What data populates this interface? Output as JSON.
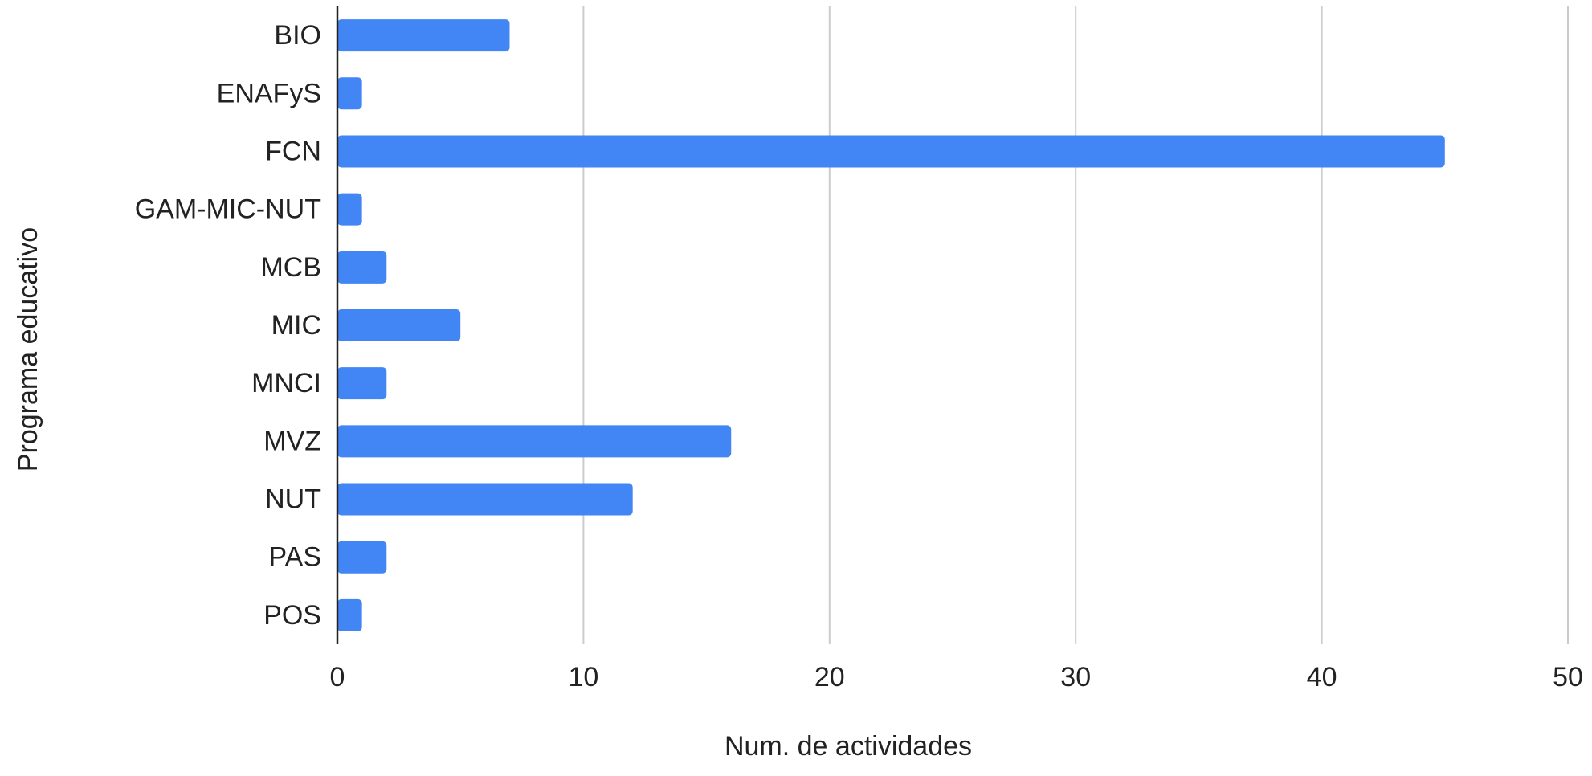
{
  "chart_data": {
    "type": "bar",
    "orientation": "horizontal",
    "title": "",
    "xlabel": "Num. de actividades",
    "ylabel": "Programa educativo",
    "categories": [
      "BIO",
      "ENAFyS",
      "FCN",
      "GAM-MIC-NUT",
      "MCB",
      "MIC",
      "MNCI",
      "MVZ",
      "NUT",
      "PAS",
      "POS"
    ],
    "series": [
      {
        "values": [
          7,
          1,
          45,
          1,
          2,
          5,
          2,
          16,
          12,
          2,
          1
        ],
        "color": "#4285f4"
      }
    ],
    "xlim": [
      0,
      50
    ],
    "xticks": [
      0,
      10,
      20,
      30,
      40,
      50
    ],
    "grid": "vertical",
    "legend": "none",
    "colors": {
      "bar": "#4285f4",
      "grid": "#cccccc",
      "axis": "#222222",
      "text": "#222222"
    }
  }
}
